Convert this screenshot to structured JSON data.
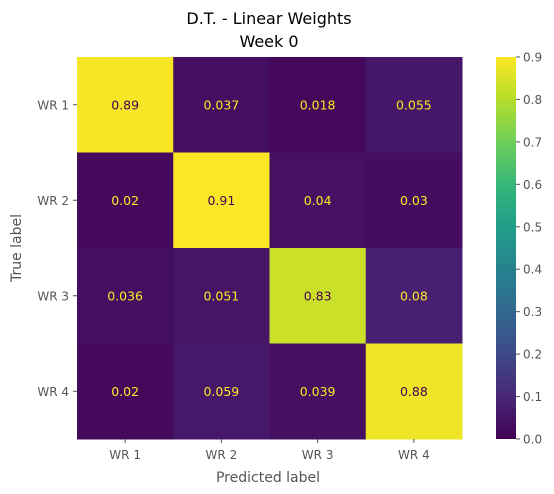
{
  "chart_data": {
    "type": "heatmap",
    "title_line1": "D.T. - Linear Weights",
    "title_line2": "Week 0",
    "xlabel": "Predicted label",
    "ylabel": "True label",
    "row_labels": [
      "WR 1",
      "WR 2",
      "WR 3",
      "WR 4"
    ],
    "col_labels": [
      "WR 1",
      "WR 2",
      "WR 3",
      "WR 4"
    ],
    "values": [
      [
        0.89,
        0.037,
        0.018,
        0.055
      ],
      [
        0.02,
        0.91,
        0.04,
        0.03
      ],
      [
        0.036,
        0.051,
        0.83,
        0.08
      ],
      [
        0.02,
        0.059,
        0.039,
        0.88
      ]
    ],
    "value_labels": [
      [
        "0.89",
        "0.037",
        "0.018",
        "0.055"
      ],
      [
        "0.02",
        "0.91",
        "0.04",
        "0.03"
      ],
      [
        "0.036",
        "0.051",
        "0.83",
        "0.08"
      ],
      [
        "0.02",
        "0.059",
        "0.039",
        "0.88"
      ]
    ],
    "colormap": "viridis",
    "colorbar_range": [
      0.0,
      0.9
    ],
    "colorbar_ticks": [
      "0.0",
      "0.1",
      "0.2",
      "0.3",
      "0.4",
      "0.5",
      "0.6",
      "0.7",
      "0.8",
      "0.9"
    ],
    "text_color_dark_cell": "#fde725",
    "text_color_light_cell": "#440154"
  }
}
